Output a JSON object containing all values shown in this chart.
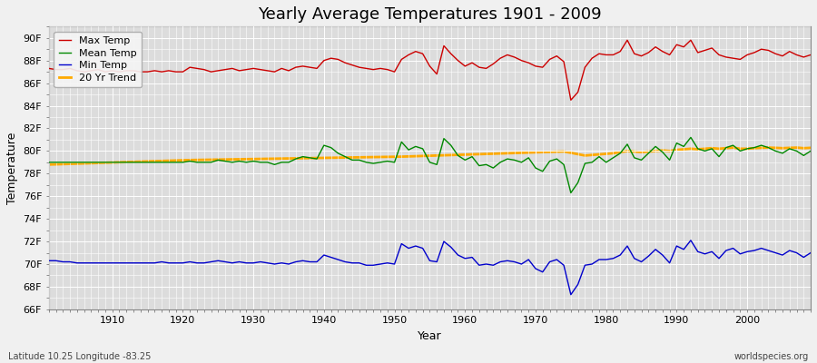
{
  "title": "Yearly Average Temperatures 1901 - 2009",
  "xlabel": "Year",
  "ylabel": "Temperature",
  "bottom_left": "Latitude 10.25 Longitude -83.25",
  "bottom_right": "worldspecies.org",
  "years": [
    1901,
    1902,
    1903,
    1904,
    1905,
    1906,
    1907,
    1908,
    1909,
    1910,
    1911,
    1912,
    1913,
    1914,
    1915,
    1916,
    1917,
    1918,
    1919,
    1920,
    1921,
    1922,
    1923,
    1924,
    1925,
    1926,
    1927,
    1928,
    1929,
    1930,
    1931,
    1932,
    1933,
    1934,
    1935,
    1936,
    1937,
    1938,
    1939,
    1940,
    1941,
    1942,
    1943,
    1944,
    1945,
    1946,
    1947,
    1948,
    1949,
    1950,
    1951,
    1952,
    1953,
    1954,
    1955,
    1956,
    1957,
    1958,
    1959,
    1960,
    1961,
    1962,
    1963,
    1964,
    1965,
    1966,
    1967,
    1968,
    1969,
    1970,
    1971,
    1972,
    1973,
    1974,
    1975,
    1976,
    1977,
    1978,
    1979,
    1980,
    1981,
    1982,
    1983,
    1984,
    1985,
    1986,
    1987,
    1988,
    1989,
    1990,
    1991,
    1992,
    1993,
    1994,
    1995,
    1996,
    1997,
    1998,
    1999,
    2000,
    2001,
    2002,
    2003,
    2004,
    2005,
    2006,
    2007,
    2008,
    2009
  ],
  "max_temp": [
    87.3,
    87.2,
    87.2,
    87.3,
    87.1,
    87.0,
    87.1,
    87.2,
    87.0,
    87.1,
    87.0,
    87.1,
    87.1,
    87.0,
    87.0,
    87.1,
    87.0,
    87.1,
    87.0,
    87.0,
    87.4,
    87.3,
    87.2,
    87.0,
    87.1,
    87.2,
    87.3,
    87.1,
    87.2,
    87.3,
    87.2,
    87.1,
    87.0,
    87.3,
    87.1,
    87.4,
    87.5,
    87.4,
    87.3,
    88.0,
    88.2,
    88.1,
    87.8,
    87.6,
    87.4,
    87.3,
    87.2,
    87.3,
    87.2,
    87.0,
    88.1,
    88.5,
    88.8,
    88.6,
    87.5,
    86.8,
    89.3,
    88.6,
    88.0,
    87.5,
    87.8,
    87.4,
    87.3,
    87.7,
    88.2,
    88.5,
    88.3,
    88.0,
    87.8,
    87.5,
    87.4,
    88.1,
    88.4,
    87.9,
    84.5,
    85.2,
    87.4,
    88.2,
    88.6,
    88.5,
    88.5,
    88.8,
    89.8,
    88.6,
    88.4,
    88.7,
    89.2,
    88.8,
    88.5,
    89.4,
    89.2,
    89.8,
    88.7,
    88.9,
    89.1,
    88.5,
    88.3,
    88.2,
    88.1,
    88.5,
    88.7,
    89.0,
    88.9,
    88.6,
    88.4,
    88.8,
    88.5,
    88.3,
    88.5
  ],
  "mean_temp": [
    79.0,
    79.0,
    79.0,
    79.0,
    79.0,
    79.0,
    79.0,
    79.0,
    79.0,
    79.0,
    79.0,
    79.0,
    79.0,
    79.0,
    79.0,
    79.0,
    79.0,
    79.0,
    79.0,
    79.0,
    79.1,
    79.0,
    79.0,
    79.0,
    79.2,
    79.1,
    79.0,
    79.1,
    79.0,
    79.1,
    79.0,
    79.0,
    78.8,
    79.0,
    79.0,
    79.3,
    79.5,
    79.4,
    79.3,
    80.5,
    80.3,
    79.8,
    79.5,
    79.2,
    79.2,
    79.0,
    78.9,
    79.0,
    79.1,
    79.0,
    80.8,
    80.1,
    80.4,
    80.2,
    79.0,
    78.8,
    81.1,
    80.5,
    79.6,
    79.2,
    79.5,
    78.7,
    78.8,
    78.5,
    79.0,
    79.3,
    79.2,
    79.0,
    79.4,
    78.5,
    78.2,
    79.1,
    79.3,
    78.8,
    76.3,
    77.2,
    78.9,
    79.0,
    79.5,
    79.0,
    79.4,
    79.8,
    80.6,
    79.4,
    79.2,
    79.8,
    80.4,
    79.9,
    79.2,
    80.7,
    80.4,
    81.2,
    80.2,
    80.0,
    80.2,
    79.5,
    80.3,
    80.5,
    80.0,
    80.2,
    80.3,
    80.5,
    80.3,
    80.0,
    79.8,
    80.2,
    80.0,
    79.6,
    80.0
  ],
  "min_temp": [
    70.3,
    70.3,
    70.2,
    70.2,
    70.1,
    70.1,
    70.1,
    70.1,
    70.1,
    70.1,
    70.1,
    70.1,
    70.1,
    70.1,
    70.1,
    70.1,
    70.2,
    70.1,
    70.1,
    70.1,
    70.2,
    70.1,
    70.1,
    70.2,
    70.3,
    70.2,
    70.1,
    70.2,
    70.1,
    70.1,
    70.2,
    70.1,
    70.0,
    70.1,
    70.0,
    70.2,
    70.3,
    70.2,
    70.2,
    70.8,
    70.6,
    70.4,
    70.2,
    70.1,
    70.1,
    69.9,
    69.9,
    70.0,
    70.1,
    70.0,
    71.8,
    71.4,
    71.6,
    71.4,
    70.3,
    70.2,
    72.0,
    71.5,
    70.8,
    70.5,
    70.6,
    69.9,
    70.0,
    69.9,
    70.2,
    70.3,
    70.2,
    70.0,
    70.4,
    69.6,
    69.3,
    70.2,
    70.4,
    69.9,
    67.3,
    68.2,
    69.9,
    70.0,
    70.4,
    70.4,
    70.5,
    70.8,
    71.6,
    70.5,
    70.2,
    70.7,
    71.3,
    70.8,
    70.1,
    71.6,
    71.3,
    72.1,
    71.1,
    70.9,
    71.1,
    70.5,
    71.2,
    71.4,
    70.9,
    71.1,
    71.2,
    71.4,
    71.2,
    71.0,
    70.8,
    71.2,
    71.0,
    70.6,
    71.0
  ],
  "trend": [
    78.8,
    78.82,
    78.84,
    78.86,
    78.88,
    78.9,
    78.92,
    78.94,
    78.96,
    78.98,
    79.0,
    79.02,
    79.04,
    79.06,
    79.08,
    79.1,
    79.12,
    79.14,
    79.16,
    79.18,
    79.2,
    79.21,
    79.22,
    79.23,
    79.24,
    79.25,
    79.26,
    79.27,
    79.28,
    79.29,
    79.3,
    79.31,
    79.32,
    79.33,
    79.34,
    79.35,
    79.36,
    79.37,
    79.38,
    79.39,
    79.4,
    79.41,
    79.42,
    79.43,
    79.44,
    79.45,
    79.46,
    79.47,
    79.48,
    79.49,
    79.5,
    79.52,
    79.54,
    79.56,
    79.58,
    79.6,
    79.62,
    79.64,
    79.66,
    79.68,
    79.7,
    79.72,
    79.74,
    79.76,
    79.78,
    79.8,
    79.82,
    79.84,
    79.86,
    79.88,
    79.9,
    79.92,
    79.94,
    79.96,
    79.84,
    79.72,
    79.6,
    79.65,
    79.7,
    79.75,
    79.8,
    79.9,
    80.0,
    79.95,
    79.9,
    79.95,
    80.0,
    80.05,
    80.0,
    80.1,
    80.15,
    80.2,
    80.15,
    80.2,
    80.25,
    80.2,
    80.25,
    80.3,
    80.2,
    80.2,
    80.25,
    80.28,
    80.3,
    80.28,
    80.25,
    80.28,
    80.3,
    80.25,
    80.28
  ],
  "ylim": [
    66,
    91
  ],
  "yticks": [
    66,
    68,
    70,
    72,
    74,
    76,
    78,
    80,
    82,
    84,
    86,
    88,
    90
  ],
  "ytick_labels": [
    "66F",
    "68F",
    "70F",
    "72F",
    "74F",
    "76F",
    "78F",
    "80F",
    "82F",
    "84F",
    "86F",
    "88F",
    "90F"
  ],
  "xlim": [
    1901,
    2009
  ],
  "xticks": [
    1910,
    1920,
    1930,
    1940,
    1950,
    1960,
    1970,
    1980,
    1990,
    2000
  ],
  "fig_facecolor": "#f0f0f0",
  "plot_bg_color": "#dcdcdc",
  "max_color": "#cc0000",
  "mean_color": "#008800",
  "min_color": "#0000cc",
  "trend_color": "#ffaa00",
  "grid_color": "#ffffff",
  "title_fontsize": 13,
  "label_fontsize": 9,
  "tick_fontsize": 8,
  "legend_fontsize": 8,
  "linewidth": 1.0,
  "trend_linewidth": 2.0
}
